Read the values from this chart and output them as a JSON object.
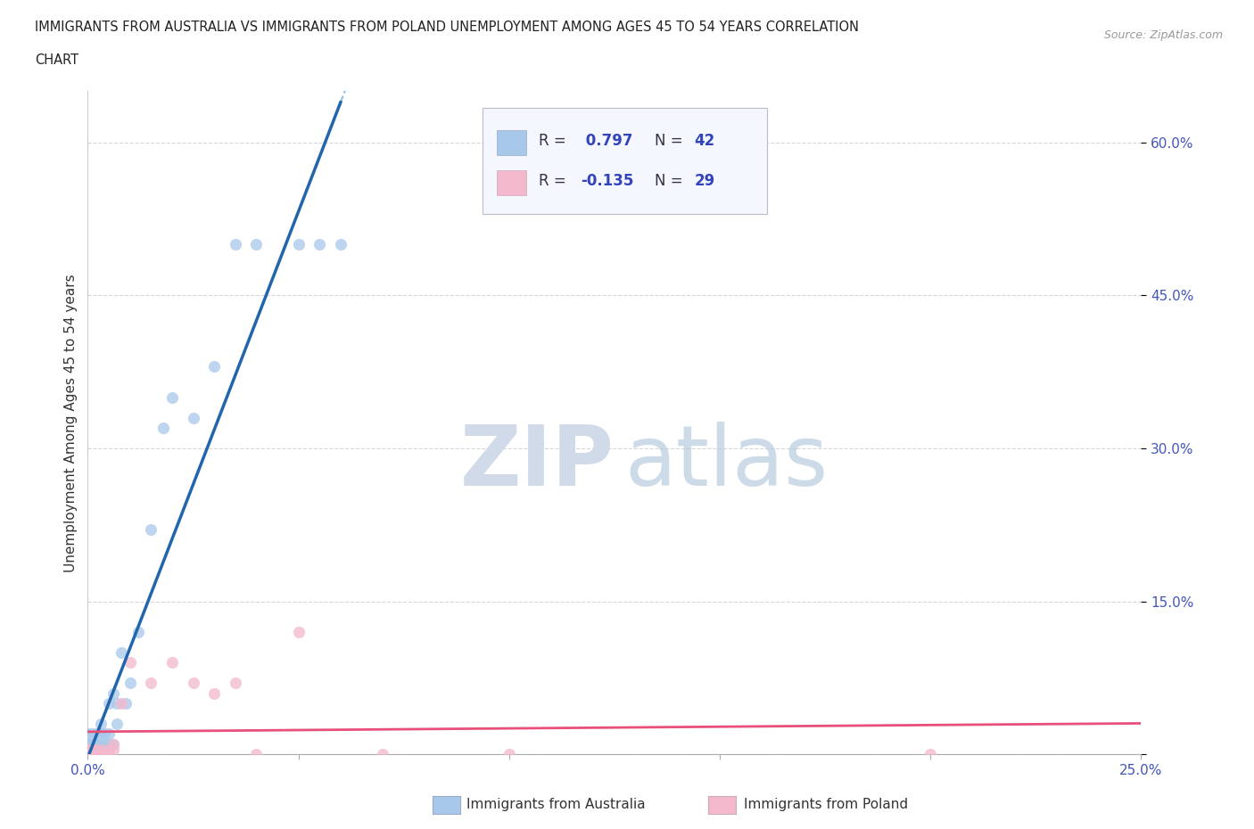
{
  "title_line1": "IMMIGRANTS FROM AUSTRALIA VS IMMIGRANTS FROM POLAND UNEMPLOYMENT AMONG AGES 45 TO 54 YEARS CORRELATION",
  "title_line2": "CHART",
  "source": "Source: ZipAtlas.com",
  "ylabel": "Unemployment Among Ages 45 to 54 years",
  "xlim": [
    0.0,
    0.25
  ],
  "ylim": [
    0.0,
    0.65
  ],
  "xtick_vals": [
    0.0,
    0.05,
    0.1,
    0.15,
    0.2,
    0.25
  ],
  "xticklabels": [
    "0.0%",
    "",
    "",
    "",
    "",
    "25.0%"
  ],
  "ytick_vals": [
    0.0,
    0.15,
    0.3,
    0.45,
    0.6
  ],
  "yticklabels": [
    "",
    "15.0%",
    "30.0%",
    "45.0%",
    "60.0%"
  ],
  "R_australia": 0.797,
  "N_australia": 42,
  "R_poland": -0.135,
  "N_poland": 29,
  "australia_color": "#a8c8ea",
  "poland_color": "#f4b8cc",
  "australia_line_color": "#2166ac",
  "poland_line_color": "#e8507a",
  "background_color": "#ffffff",
  "watermark_zip": "ZIP",
  "watermark_atlas": "atlas",
  "australia_x": [
    0.0,
    0.0,
    0.0,
    0.0,
    0.001,
    0.001,
    0.001,
    0.001,
    0.001,
    0.002,
    0.002,
    0.002,
    0.002,
    0.002,
    0.003,
    0.003,
    0.003,
    0.003,
    0.004,
    0.004,
    0.004,
    0.005,
    0.005,
    0.005,
    0.006,
    0.006,
    0.007,
    0.007,
    0.008,
    0.009,
    0.01,
    0.012,
    0.015,
    0.018,
    0.02,
    0.025,
    0.03,
    0.035,
    0.04,
    0.05,
    0.055,
    0.06
  ],
  "australia_y": [
    0.0,
    0.0,
    0.01,
    0.02,
    0.0,
    0.0,
    0.01,
    0.01,
    0.02,
    0.0,
    0.0,
    0.01,
    0.01,
    0.02,
    0.0,
    0.01,
    0.02,
    0.03,
    0.0,
    0.01,
    0.02,
    0.01,
    0.02,
    0.05,
    0.01,
    0.06,
    0.03,
    0.05,
    0.1,
    0.05,
    0.07,
    0.12,
    0.22,
    0.32,
    0.35,
    0.33,
    0.38,
    0.5,
    0.5,
    0.5,
    0.5,
    0.5
  ],
  "poland_x": [
    0.0,
    0.0,
    0.0,
    0.0,
    0.0,
    0.0,
    0.001,
    0.001,
    0.002,
    0.002,
    0.003,
    0.003,
    0.004,
    0.005,
    0.005,
    0.006,
    0.006,
    0.008,
    0.01,
    0.015,
    0.02,
    0.025,
    0.03,
    0.035,
    0.04,
    0.05,
    0.07,
    0.1,
    0.2
  ],
  "poland_y": [
    0.0,
    0.0,
    0.0,
    0.0,
    0.005,
    0.005,
    0.0,
    0.005,
    0.0,
    0.005,
    0.0,
    0.005,
    0.0,
    0.0,
    0.005,
    0.005,
    0.01,
    0.05,
    0.09,
    0.07,
    0.09,
    0.07,
    0.06,
    0.07,
    0.0,
    0.12,
    0.0,
    0.0,
    0.0
  ]
}
